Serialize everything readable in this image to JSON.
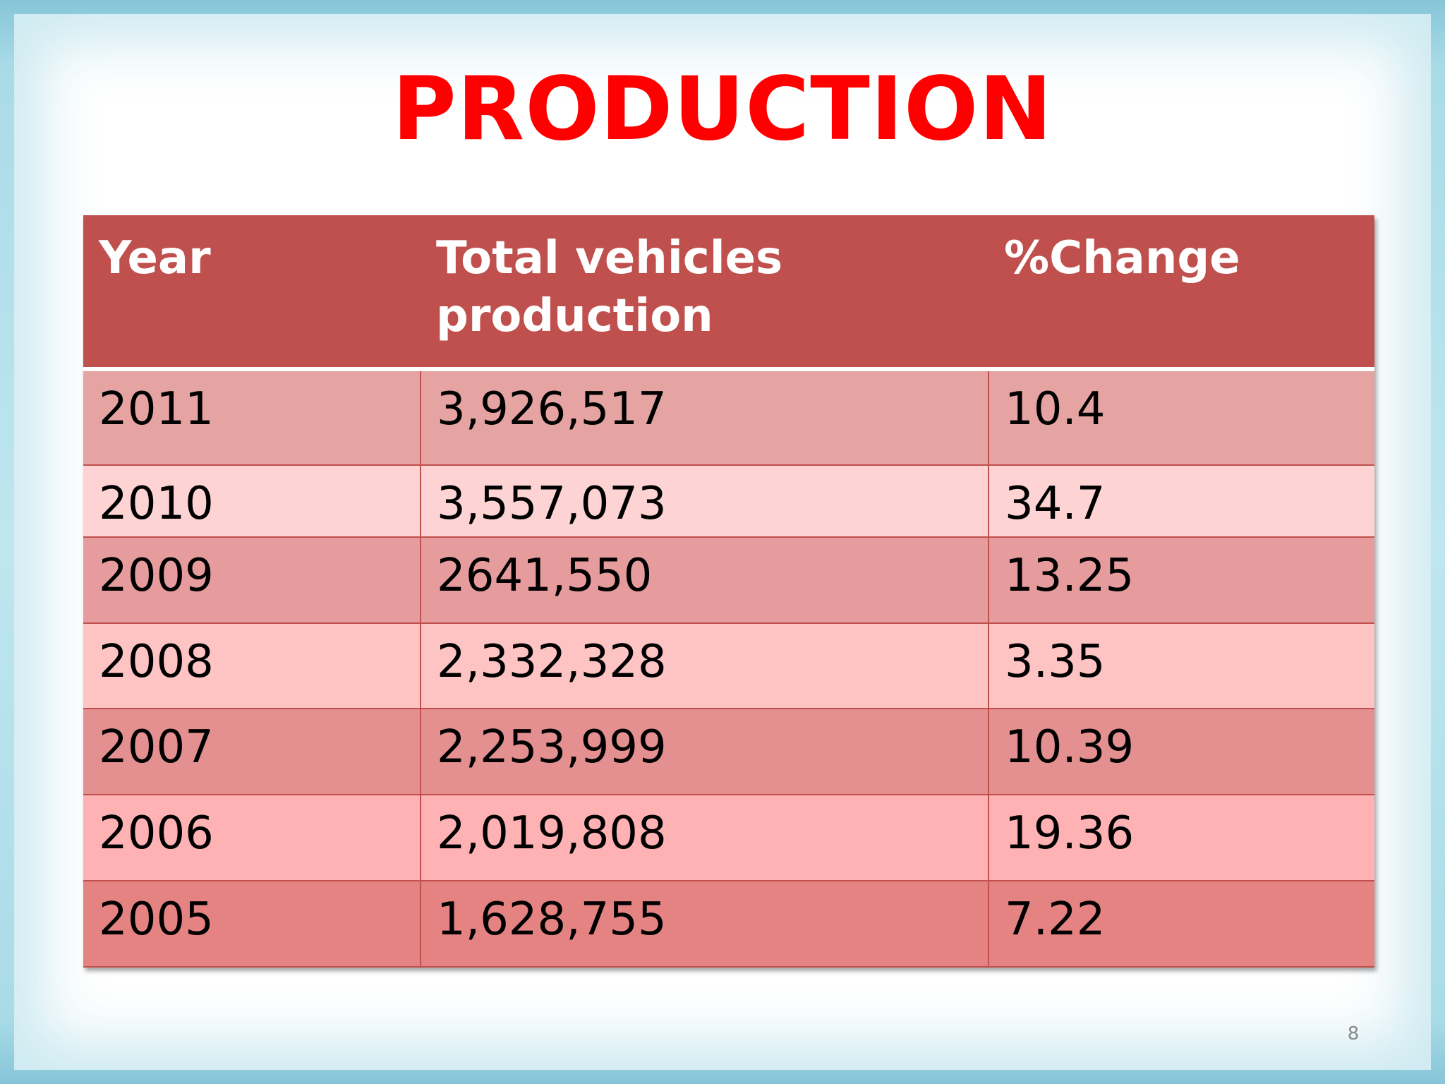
{
  "slide": {
    "title": "PRODUCTION",
    "page_number": "8"
  },
  "table": {
    "headers": [
      "Year",
      "Total vehicles production",
      "%Change"
    ],
    "rows": [
      {
        "year": "2011",
        "total": "3,926,517",
        "change": "10.4",
        "bg": "#e5a3a2",
        "height": 136
      },
      {
        "year": "2010",
        "total": "3,557,073",
        "change": "34.7",
        "bg": "#fdd3d3",
        "height": 102
      },
      {
        "year": "2009",
        "total": "2641,550",
        "change": "13.25",
        "bg": "#e69c9c",
        "height": 122
      },
      {
        "year": "2008",
        "total": "2,332,328",
        "change": "3.35",
        "bg": "#fec3c3",
        "height": 121
      },
      {
        "year": "2007",
        "total": "2,253,999",
        "change": "10.39",
        "bg": "#e59090",
        "height": 122
      },
      {
        "year": "2006",
        "total": "2,019,808",
        "change": "19.36",
        "bg": "#ffb2b3",
        "height": 122
      },
      {
        "year": "2005",
        "total": "1,628,755",
        "change": "7.22",
        "bg": "#e58382",
        "height": 122
      }
    ]
  },
  "colors": {
    "title": "#ff0000",
    "header_bg": "#c0504d",
    "header_text": "#ffffff",
    "border": "#c0504d"
  }
}
